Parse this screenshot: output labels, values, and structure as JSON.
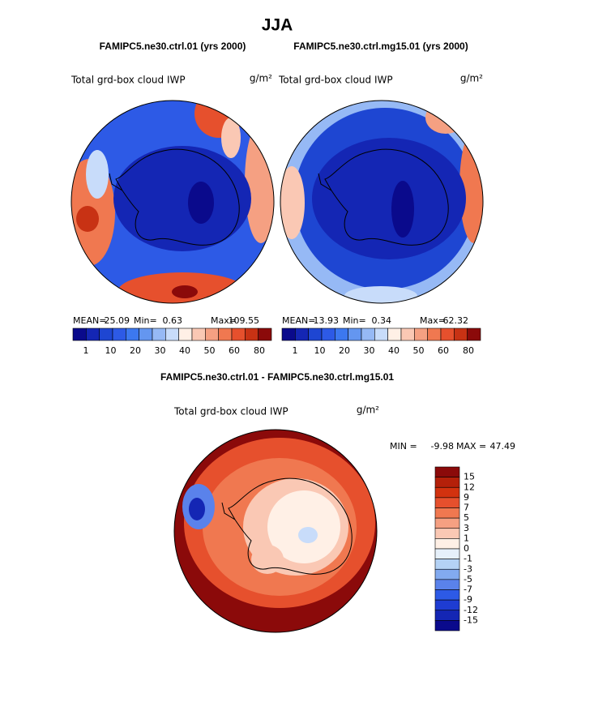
{
  "title": "JJA",
  "panels": [
    {
      "case": "FAMIPC5.ne30.ctrl.01 (yrs 2000)",
      "variable": "Total grd-box cloud IWP",
      "units": "g/m²",
      "stats": [
        {
          "label": "MEAN=",
          "value": 25.09
        },
        {
          "label": "Min=",
          "value": 0.63
        },
        {
          "label": "Max=",
          "value": 109.55
        }
      ],
      "colorbar": {
        "labels": [
          1,
          10,
          20,
          30,
          40,
          50,
          60,
          80
        ],
        "colors": [
          "#0a0a8c",
          "#1426b4",
          "#1e46d2",
          "#2d5ae6",
          "#3c78f0",
          "#6496f0",
          "#96b9f5",
          "#c8dcfa",
          "#fff0e6",
          "#fac8b4",
          "#f5a082",
          "#f07850",
          "#e6502d",
          "#c83214",
          "#8b0a0a"
        ]
      }
    },
    {
      "case": "FAMIPC5.ne30.ctrl.mg15.01 (yrs 2000)",
      "variable": "Total grd-box cloud IWP",
      "units": "g/m²",
      "stats": [
        {
          "label": "MEAN=",
          "value": 13.93
        },
        {
          "label": "Min=",
          "value": 0.34
        },
        {
          "label": "Max=",
          "value": 62.32
        }
      ],
      "colorbar": {
        "labels": [
          1,
          10,
          20,
          30,
          40,
          50,
          60,
          80
        ],
        "colors": [
          "#0a0a8c",
          "#1426b4",
          "#1e46d2",
          "#2d5ae6",
          "#3c78f0",
          "#6496f0",
          "#96b9f5",
          "#c8dcfa",
          "#fff0e6",
          "#fac8b4",
          "#f5a082",
          "#f07850",
          "#e6502d",
          "#c83214",
          "#8b0a0a"
        ]
      }
    }
  ],
  "difference": {
    "title": "FAMIPC5.ne30.ctrl.01 - FAMIPC5.ne30.ctrl.mg15.01",
    "variable": "Total grd-box cloud IWP",
    "units": "g/m²",
    "stats": [
      {
        "label": "MIN =",
        "value": -9.98
      },
      {
        "label": "MAX =",
        "value": 47.49
      }
    ],
    "colorbar": {
      "labels": [
        15,
        12,
        9,
        7,
        5,
        3,
        1,
        0,
        -1,
        -3,
        -5,
        -7,
        -9,
        -12,
        -15
      ],
      "colors": [
        "#8b0a0a",
        "#b4200a",
        "#d2320f",
        "#e6502d",
        "#f07850",
        "#f5a082",
        "#fac8b4",
        "#fff0e6",
        "#e6f0fa",
        "#b4d2f5",
        "#82aaf0",
        "#5a82eb",
        "#2d5ae6",
        "#1e3cd2",
        "#1426b4",
        "#0a0a8c"
      ]
    }
  }
}
